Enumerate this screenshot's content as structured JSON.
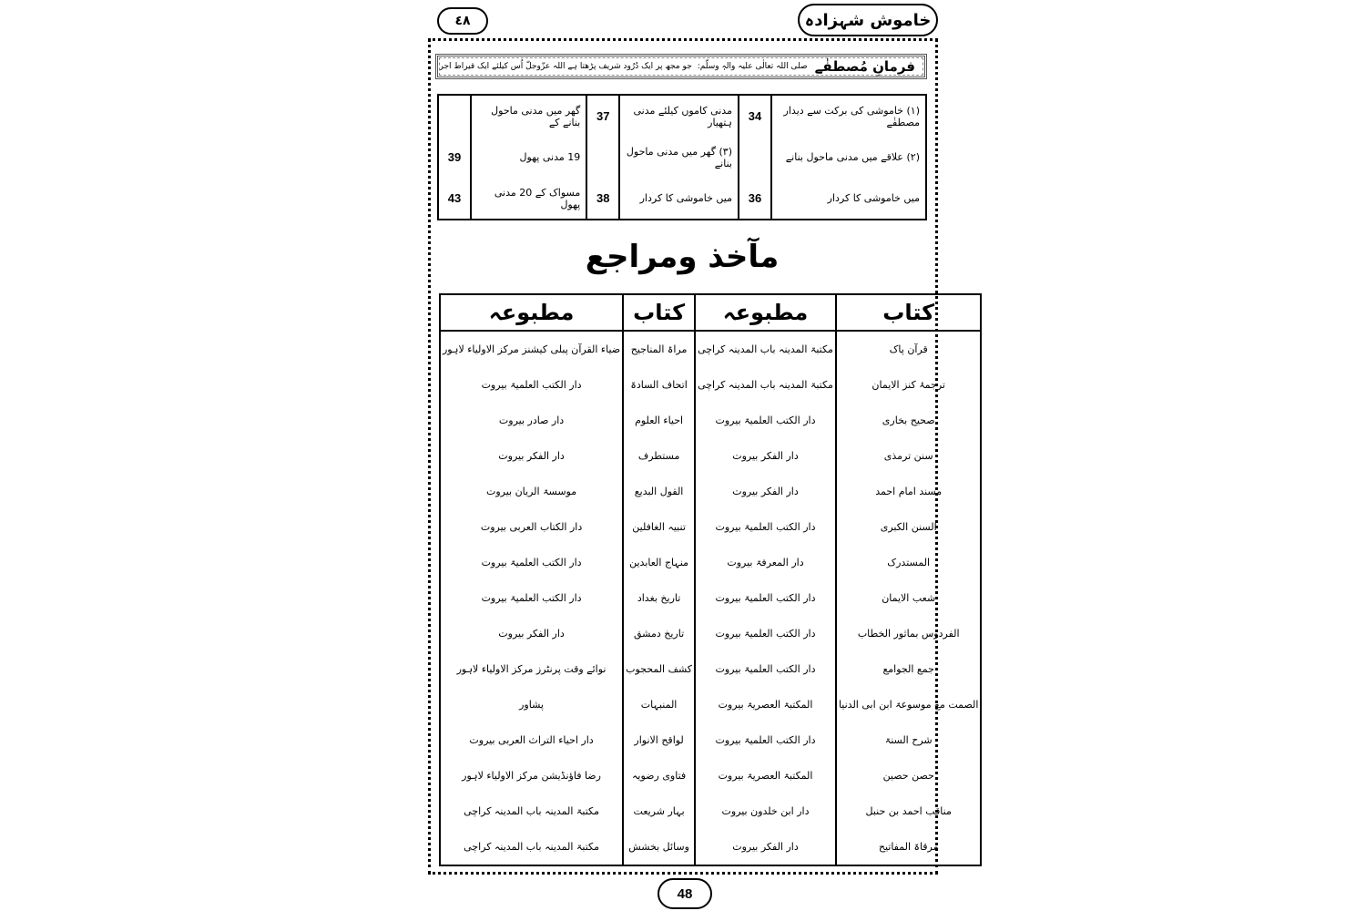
{
  "header": {
    "page_number_urdu": "٤٨",
    "book_title": "خاموش شہزادہ"
  },
  "farman": {
    "title": "فرمانِ مُصطفٰے",
    "salutation": "صلی اللہ تعالٰی علیہ والہٖ وسلّم:",
    "text": "جو مجھ پر ایک دُرُود شریف پڑھتا ہے اللہ عزّوجلّ اُس کیلئے ایک قیراط اجر لکھتا اور قیراط اُحد پہاڑ جتنا ہے۔(عبدالرزاق)"
  },
  "index": {
    "rows": [
      [
        "(۱) خاموشی کی برکت سے دیدار مصطفٰے",
        "34",
        "مدنی کاموں کیلئے مدنی ہتھیار",
        "37",
        "گھر میں مدنی ماحول بنانے کے",
        ""
      ],
      [
        "(۲) علاقے میں مدنی ماحول بنانے",
        "",
        "(۳) گھر میں مدنی ماحول بنانے",
        "",
        "19 مدنی پھول",
        "39"
      ],
      [
        "میں خاموشی کا کردار",
        "36",
        "میں خاموشی کا کردار",
        "38",
        "مسواک کے 20 مدنی پھول",
        "43"
      ]
    ]
  },
  "heading": "مآخذ ومراجع",
  "references": {
    "headers": [
      "کتاب",
      "مطبوعہ",
      "کتاب",
      "مطبوعہ"
    ],
    "rows": [
      [
        "قرآن پاک",
        "مکتبۃ المدینہ باب المدینہ کراچی",
        "مراۃ المناجیح",
        "ضیاء القرآن پبلی کیشنز مرکز الاولیاء لاہور"
      ],
      [
        "ترجمۂ کنز الایمان",
        "مکتبۃ المدینہ باب المدینہ کراچی",
        "اتحاف السادۃ",
        "دار الکتب العلمیۃ بیروت"
      ],
      [
        "صحیح بخاری",
        "دار الکتب العلمیۃ بیروت",
        "احیاء العلوم",
        "دار صادر بیروت"
      ],
      [
        "سنن ترمذی",
        "دار الفکر بیروت",
        "مستطرف",
        "دار الفکر بیروت"
      ],
      [
        "مسند امام احمد",
        "دار الفکر بیروت",
        "القول البدیع",
        "موسسۃ الریان بیروت"
      ],
      [
        "السنن الکبری",
        "دار الکتب العلمیۃ بیروت",
        "تنبیہ الغافلین",
        "دار الکتاب العربی بیروت"
      ],
      [
        "المستدرک",
        "دار المعرفۃ بیروت",
        "منہاج العابدین",
        "دار الکتب العلمیۃ بیروت"
      ],
      [
        "شعب الایمان",
        "دار الکتب العلمیۃ بیروت",
        "تاریخ بغداد",
        "دار الکتب العلمیۃ بیروت"
      ],
      [
        "الفردوس بماثور الخطاب",
        "دار الکتب العلمیۃ بیروت",
        "تاریخ دمشق",
        "دار الفکر بیروت"
      ],
      [
        "جمع الجوامع",
        "دار الکتب العلمیۃ بیروت",
        "کشف المحجوب",
        "نوائے وقت پرنٹرز مرکز الاولیاء لاہور"
      ],
      [
        "الصمت مع موسوعۃ ابن ابی الدنیا",
        "المکتبۃ العصریۃ بیروت",
        "المنبہات",
        "پشاور"
      ],
      [
        "شرح السنۃ",
        "دار الکتب العلمیۃ بیروت",
        "لواقح الانوار",
        "دار احیاء التراث العربی بیروت"
      ],
      [
        "حصن حصین",
        "المکتبۃ العصریۃ بیروت",
        "فتاوی رضویہ",
        "رضا فاؤنڈیشن مرکز الاولیاء لاہور"
      ],
      [
        "مناقب احمد بن حنبل",
        "دار ابن خلدون بیروت",
        "بہار شریعت",
        "مکتبۃ المدینہ باب المدینہ کراچی"
      ],
      [
        "مرقاۃ المفاتیح",
        "دار الفکر بیروت",
        "وسائل بخشش",
        "مکتبۃ المدینہ باب المدینہ کراچی"
      ]
    ]
  },
  "footer": {
    "page_number": "48"
  }
}
